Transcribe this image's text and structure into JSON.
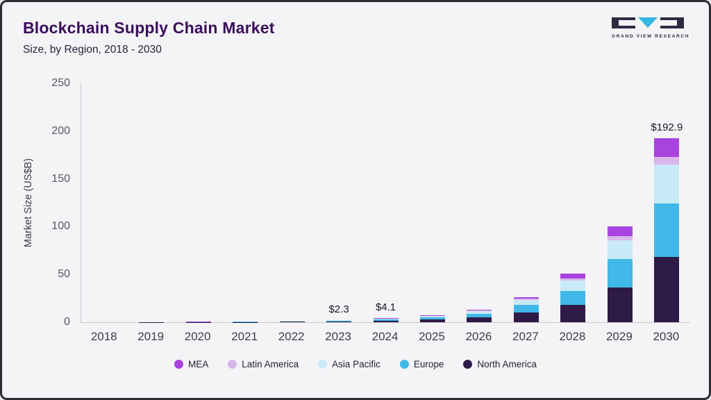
{
  "page": {
    "title": "Blockchain Supply Chain Market",
    "subtitle": "Size, by Region, 2018 - 2030",
    "logo_text": "GRAND VIEW RESEARCH"
  },
  "chart_data": {
    "type": "bar",
    "stacked": true,
    "title": "Blockchain Supply Chain Market",
    "subtitle": "Size, by Region, 2018 - 2030",
    "xlabel": "",
    "ylabel": "Market Size (US$B)",
    "ylim": [
      0,
      250
    ],
    "yticks": [
      0,
      50,
      100,
      150,
      200,
      250
    ],
    "grid": false,
    "legend_position": "bottom",
    "categories": [
      "2018",
      "2019",
      "2020",
      "2021",
      "2022",
      "2023",
      "2024",
      "2025",
      "2026",
      "2027",
      "2028",
      "2029",
      "2030"
    ],
    "series": [
      {
        "name": "North America",
        "color": "#2e1a47",
        "values": [
          0.04,
          0.08,
          0.16,
          0.3,
          0.55,
          0.9,
          1.6,
          2.7,
          5.0,
          10.0,
          18.0,
          36.0,
          68.0
        ]
      },
      {
        "name": "Europe",
        "color": "#41b8e8",
        "values": [
          0.03,
          0.06,
          0.12,
          0.22,
          0.42,
          0.7,
          1.2,
          2.1,
          4.0,
          8.0,
          15.0,
          30.0,
          56.0
        ]
      },
      {
        "name": "Asia Pacific",
        "color": "#c9eaf7",
        "values": [
          0.02,
          0.04,
          0.08,
          0.13,
          0.24,
          0.45,
          0.85,
          1.5,
          2.8,
          5.5,
          10.5,
          20.0,
          41.0
        ]
      },
      {
        "name": "Latin America",
        "color": "#d9b6ec",
        "values": [
          0.005,
          0.01,
          0.02,
          0.03,
          0.04,
          0.08,
          0.15,
          0.3,
          0.5,
          1.0,
          2.5,
          4.0,
          7.9
        ]
      },
      {
        "name": "MEA",
        "color": "#a843e0",
        "values": [
          0.005,
          0.01,
          0.02,
          0.04,
          0.05,
          0.17,
          0.3,
          0.5,
          0.9,
          2.0,
          5.0,
          10.0,
          20.0
        ]
      }
    ],
    "annotations": [
      {
        "category": "2023",
        "label": "$2.3"
      },
      {
        "category": "2024",
        "label": "$4.1"
      },
      {
        "category": "2030",
        "label": "$192.9"
      }
    ]
  },
  "legend": {
    "items": [
      {
        "label": "MEA",
        "color": "#a843e0"
      },
      {
        "label": "Latin America",
        "color": "#d9b6ec"
      },
      {
        "label": "Asia Pacific",
        "color": "#c9eaf7"
      },
      {
        "label": "Europe",
        "color": "#41b8e8"
      },
      {
        "label": "North America",
        "color": "#2e1a47"
      }
    ]
  }
}
